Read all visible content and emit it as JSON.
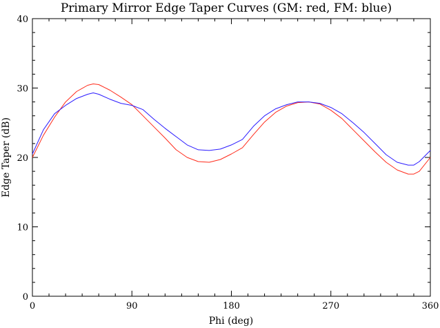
{
  "chart_data": {
    "type": "line",
    "title": "Primary Mirror Edge Taper Curves (GM: red, FM: blue)",
    "xlabel": "Phi (deg)",
    "ylabel": "Edge Taper (dB)",
    "xlim": [
      0,
      360
    ],
    "ylim": [
      0,
      40
    ],
    "xticks": [
      0,
      90,
      180,
      270,
      360
    ],
    "yticks": [
      0,
      10,
      20,
      30,
      40
    ],
    "grid": false,
    "series": [
      {
        "color": "#ff2a1a",
        "x": [
          0,
          10,
          20,
          30,
          40,
          50,
          55,
          60,
          70,
          80,
          90,
          100,
          110,
          120,
          130,
          140,
          150,
          160,
          170,
          180,
          190,
          200,
          210,
          220,
          230,
          240,
          250,
          260,
          270,
          280,
          290,
          300,
          310,
          320,
          330,
          340,
          345,
          350,
          360
        ],
        "y": [
          20.0,
          23.2,
          25.8,
          28.0,
          29.5,
          30.4,
          30.6,
          30.5,
          29.7,
          28.7,
          27.6,
          26.0,
          24.4,
          22.8,
          21.1,
          20.0,
          19.4,
          19.3,
          19.7,
          20.5,
          21.4,
          23.3,
          25.1,
          26.5,
          27.4,
          27.9,
          28.0,
          27.7,
          26.8,
          25.6,
          24.0,
          22.4,
          20.8,
          19.3,
          18.2,
          17.6,
          17.6,
          18.0,
          20.0
        ]
      },
      {
        "color": "#2a1aff",
        "x": [
          0,
          10,
          20,
          30,
          40,
          50,
          55,
          60,
          70,
          80,
          90,
          100,
          110,
          120,
          130,
          140,
          150,
          160,
          170,
          180,
          190,
          200,
          210,
          220,
          230,
          240,
          250,
          260,
          270,
          280,
          290,
          300,
          310,
          320,
          330,
          340,
          345,
          350,
          360
        ],
        "y": [
          20.5,
          24.0,
          26.3,
          27.5,
          28.5,
          29.1,
          29.3,
          29.1,
          28.4,
          27.8,
          27.5,
          26.9,
          25.5,
          24.2,
          23.0,
          21.8,
          21.1,
          21.0,
          21.2,
          21.8,
          22.6,
          24.5,
          26.0,
          27.0,
          27.6,
          28.0,
          28.0,
          27.8,
          27.2,
          26.3,
          25.0,
          23.6,
          22.0,
          20.4,
          19.3,
          18.9,
          18.9,
          19.4,
          21.0
        ]
      }
    ]
  }
}
